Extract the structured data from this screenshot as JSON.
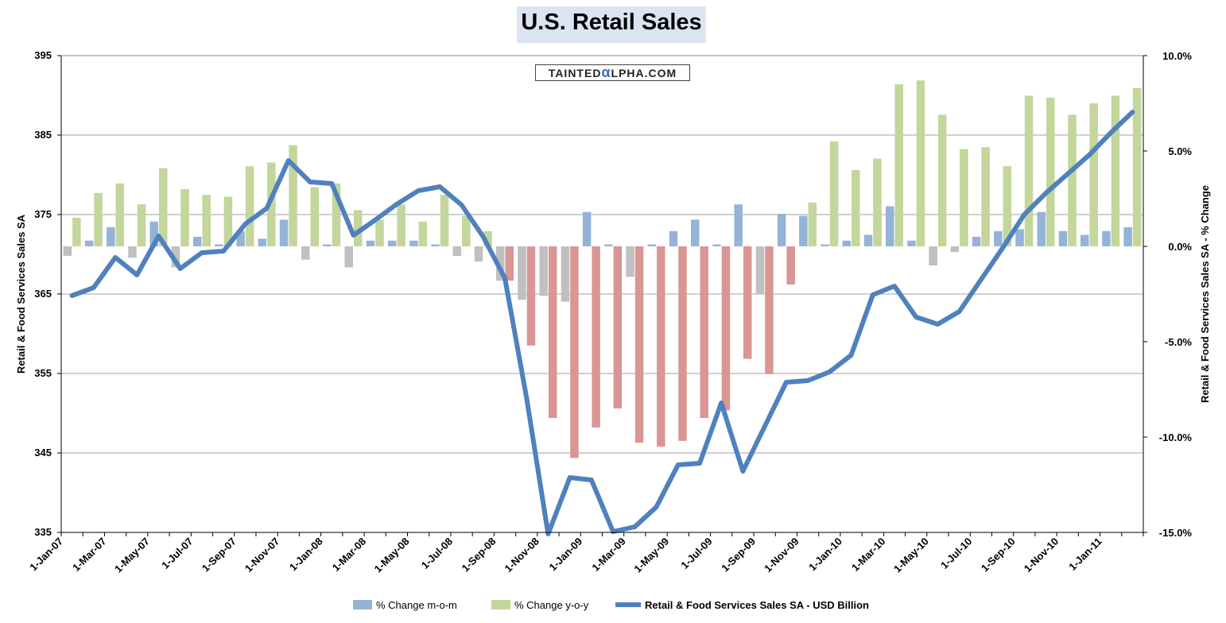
{
  "chart_data": {
    "type": "bar+line",
    "title": "U.S. Retail Sales",
    "watermark": {
      "pre": "TAINTED",
      "mid": "α",
      "post": "LPHA.COM"
    },
    "ylabel_left": "Retail & Food Services Sales SA",
    "ylabel_right": "Retail & Food Services Sales SA - % Change",
    "ylim_left": [
      335,
      395
    ],
    "yticks_left": [
      335,
      345,
      355,
      365,
      375,
      385,
      395
    ],
    "ylim_right": [
      -15,
      10
    ],
    "yticks_right": [
      -15,
      -10,
      -5,
      0,
      5,
      10
    ],
    "ytick_labels_right": [
      "-15.0%",
      "-10.0%",
      "-5.0%",
      "0.0%",
      "5.0%",
      "10.0%"
    ],
    "x_tick_labels": [
      "1-Jan-07",
      "1-Mar-07",
      "1-May-07",
      "1-Jul-07",
      "1-Sep-07",
      "1-Nov-07",
      "1-Jan-08",
      "1-Mar-08",
      "1-May-08",
      "1-Jul-08",
      "1-Sep-08",
      "1-Nov-08",
      "1-Jan-09",
      "1-Mar-09",
      "1-May-09",
      "1-Jul-09",
      "1-Sep-09",
      "1-Nov-09",
      "1-Jan-10",
      "1-Mar-10",
      "1-May-10",
      "1-Jul-10",
      "1-Sep-10",
      "1-Nov-10",
      "1-Jan-11"
    ],
    "grid": true,
    "legend": [
      "% Change m-o-m",
      "% Change y-o-y",
      "Retail & Food Services Sales SA - USD Billion"
    ],
    "colors": {
      "mom_pos": "#95b3d7",
      "mom_neg": "#c0c0c0",
      "yoy_pos": "#c3d69b",
      "yoy_neg": "#d99694",
      "line": "#4f81bd",
      "grid": "#a0a0a0",
      "title_bg": "#dbe5f1"
    },
    "months": 50,
    "series": [
      {
        "name": "% Change m-o-m",
        "axis": "right",
        "values": [
          -0.5,
          0.3,
          1.0,
          -0.6,
          1.3,
          -1.1,
          0.5,
          0.1,
          0.8,
          0.4,
          1.4,
          -0.7,
          0.1,
          -1.1,
          0.3,
          0.3,
          0.3,
          0.1,
          -0.5,
          -0.8,
          -1.8,
          -2.8,
          -2.6,
          -2.9,
          1.8,
          0.1,
          -1.6,
          0.1,
          0.8,
          1.4,
          0.1,
          2.2,
          -2.5,
          1.7,
          1.6,
          0.1,
          0.3,
          0.6,
          2.1,
          0.3,
          -1.0,
          -0.3,
          0.5,
          0.8,
          0.9,
          1.8,
          0.8,
          0.6,
          0.8,
          1.0
        ]
      },
      {
        "name": "% Change y-o-y",
        "axis": "right",
        "values": [
          1.5,
          2.8,
          3.3,
          2.2,
          4.1,
          3.0,
          2.7,
          2.6,
          4.2,
          4.4,
          5.3,
          3.1,
          3.3,
          1.9,
          1.4,
          2.2,
          1.3,
          2.7,
          1.6,
          0.8,
          -1.8,
          -5.2,
          -9.0,
          -11.1,
          -9.5,
          -8.5,
          -10.3,
          -10.5,
          -10.2,
          -9.0,
          -8.6,
          -5.9,
          -6.7,
          -2.0,
          2.3,
          5.5,
          4.0,
          4.6,
          8.5,
          8.7,
          6.9,
          5.1,
          5.2,
          4.2,
          7.9,
          7.8,
          6.9,
          7.5,
          7.9,
          8.3
        ]
      },
      {
        "name": "Retail & Food Services Sales SA - USD Billion",
        "axis": "left",
        "values": [
          364.8,
          365.8,
          369.6,
          367.4,
          372.3,
          368.2,
          370.2,
          370.4,
          373.8,
          375.8,
          381.8,
          379.1,
          378.9,
          372.4,
          374.3,
          376.3,
          378.0,
          378.5,
          376.2,
          372.2,
          367.0,
          352.0,
          334.8,
          341.9,
          341.6,
          335.1,
          335.7,
          338.2,
          343.5,
          343.7,
          351.3,
          342.7,
          348.3,
          353.9,
          354.1,
          355.2,
          357.3,
          364.9,
          366.0,
          362.1,
          361.2,
          362.8,
          366.8,
          370.8,
          375.0,
          377.7,
          380.1,
          382.5,
          385.3,
          387.9
        ]
      }
    ]
  }
}
